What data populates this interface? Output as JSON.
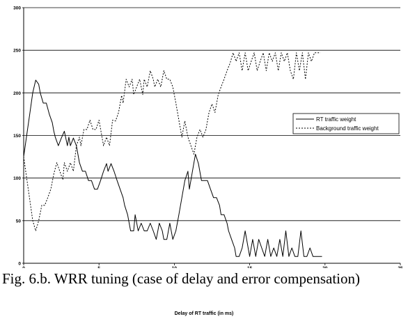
{
  "chart_data": {
    "type": "line",
    "title": "",
    "xlabel": "",
    "ylabel": "",
    "xlim": [
      0,
      25
    ],
    "ylim": [
      0,
      300
    ],
    "x_ticks": [
      "0",
      "5",
      "10",
      "15",
      "20",
      "25"
    ],
    "y_ticks": [
      "0",
      "50",
      "100",
      "150",
      "200",
      "250",
      "300"
    ],
    "grid": "horizontal",
    "legend_position": "right",
    "series": [
      {
        "name": "RT traffic weight",
        "style": "solid",
        "color": "#000000",
        "points": [
          [
            0,
            125
          ],
          [
            0.2,
            150
          ],
          [
            0.4,
            175
          ],
          [
            0.6,
            200
          ],
          [
            0.8,
            215
          ],
          [
            1.0,
            210
          ],
          [
            1.1,
            200
          ],
          [
            1.3,
            188
          ],
          [
            1.5,
            188
          ],
          [
            1.7,
            175
          ],
          [
            1.9,
            165
          ],
          [
            2.0,
            155
          ],
          [
            2.1,
            148
          ],
          [
            2.3,
            138
          ],
          [
            2.5,
            147
          ],
          [
            2.7,
            155
          ],
          [
            2.9,
            138
          ],
          [
            3.0,
            148
          ],
          [
            3.1,
            138
          ],
          [
            3.3,
            147
          ],
          [
            3.5,
            138
          ],
          [
            3.7,
            118
          ],
          [
            3.9,
            108
          ],
          [
            4.1,
            108
          ],
          [
            4.3,
            97
          ],
          [
            4.5,
            97
          ],
          [
            4.7,
            87
          ],
          [
            4.9,
            87
          ],
          [
            5.1,
            97
          ],
          [
            5.3,
            108
          ],
          [
            5.5,
            117
          ],
          [
            5.6,
            108
          ],
          [
            5.8,
            117
          ],
          [
            6.0,
            108
          ],
          [
            6.2,
            97
          ],
          [
            6.4,
            87
          ],
          [
            6.6,
            77
          ],
          [
            6.7,
            68
          ],
          [
            6.9,
            57
          ],
          [
            7.1,
            38
          ],
          [
            7.3,
            38
          ],
          [
            7.4,
            57
          ],
          [
            7.6,
            38
          ],
          [
            7.8,
            47
          ],
          [
            8.0,
            38
          ],
          [
            8.2,
            38
          ],
          [
            8.4,
            47
          ],
          [
            8.6,
            38
          ],
          [
            8.8,
            28
          ],
          [
            9.0,
            47
          ],
          [
            9.2,
            38
          ],
          [
            9.3,
            28
          ],
          [
            9.5,
            28
          ],
          [
            9.7,
            47
          ],
          [
            9.9,
            28
          ],
          [
            10.1,
            38
          ],
          [
            10.3,
            57
          ],
          [
            10.5,
            77
          ],
          [
            10.7,
            97
          ],
          [
            10.9,
            108
          ],
          [
            11.0,
            87
          ],
          [
            11.2,
            108
          ],
          [
            11.4,
            128
          ],
          [
            11.6,
            117
          ],
          [
            11.8,
            97
          ],
          [
            12.0,
            97
          ],
          [
            12.2,
            97
          ],
          [
            12.4,
            87
          ],
          [
            12.6,
            77
          ],
          [
            12.8,
            77
          ],
          [
            13.0,
            68
          ],
          [
            13.1,
            57
          ],
          [
            13.3,
            57
          ],
          [
            13.5,
            47
          ],
          [
            13.6,
            38
          ],
          [
            13.8,
            28
          ],
          [
            14.0,
            18
          ],
          [
            14.1,
            8
          ],
          [
            14.3,
            8
          ],
          [
            14.5,
            18
          ],
          [
            14.7,
            38
          ],
          [
            14.9,
            18
          ],
          [
            15.0,
            8
          ],
          [
            15.2,
            28
          ],
          [
            15.4,
            8
          ],
          [
            15.6,
            28
          ],
          [
            15.8,
            18
          ],
          [
            16.0,
            8
          ],
          [
            16.2,
            28
          ],
          [
            16.4,
            8
          ],
          [
            16.6,
            18
          ],
          [
            16.8,
            8
          ],
          [
            17.0,
            28
          ],
          [
            17.2,
            8
          ],
          [
            17.4,
            38
          ],
          [
            17.6,
            8
          ],
          [
            17.8,
            18
          ],
          [
            18.0,
            8
          ],
          [
            18.2,
            8
          ],
          [
            18.4,
            38
          ],
          [
            18.6,
            8
          ],
          [
            18.8,
            8
          ],
          [
            19.0,
            18
          ],
          [
            19.2,
            8
          ],
          [
            19.4,
            8
          ],
          [
            19.6,
            8
          ],
          [
            19.8,
            8
          ]
        ]
      },
      {
        "name": "Background traffic weight",
        "style": "dashed",
        "color": "#000000",
        "points": [
          [
            0,
            125
          ],
          [
            0.2,
            100
          ],
          [
            0.4,
            75
          ],
          [
            0.6,
            50
          ],
          [
            0.8,
            38
          ],
          [
            1.0,
            50
          ],
          [
            1.2,
            68
          ],
          [
            1.4,
            68
          ],
          [
            1.6,
            77
          ],
          [
            1.8,
            87
          ],
          [
            2.0,
            105
          ],
          [
            2.2,
            118
          ],
          [
            2.4,
            108
          ],
          [
            2.6,
            98
          ],
          [
            2.7,
            118
          ],
          [
            2.9,
            108
          ],
          [
            3.1,
            118
          ],
          [
            3.3,
            108
          ],
          [
            3.5,
            138
          ],
          [
            3.7,
            148
          ],
          [
            3.8,
            138
          ],
          [
            4.0,
            157
          ],
          [
            4.2,
            157
          ],
          [
            4.4,
            168
          ],
          [
            4.6,
            157
          ],
          [
            4.8,
            157
          ],
          [
            5.0,
            168
          ],
          [
            5.2,
            148
          ],
          [
            5.3,
            138
          ],
          [
            5.5,
            148
          ],
          [
            5.7,
            138
          ],
          [
            5.9,
            168
          ],
          [
            6.1,
            167
          ],
          [
            6.3,
            177
          ],
          [
            6.5,
            197
          ],
          [
            6.6,
            188
          ],
          [
            6.8,
            216
          ],
          [
            7.0,
            207
          ],
          [
            7.2,
            216
          ],
          [
            7.3,
            198
          ],
          [
            7.5,
            207
          ],
          [
            7.7,
            216
          ],
          [
            7.9,
            198
          ],
          [
            8.0,
            216
          ],
          [
            8.2,
            207
          ],
          [
            8.4,
            226
          ],
          [
            8.6,
            216
          ],
          [
            8.7,
            207
          ],
          [
            8.9,
            216
          ],
          [
            9.1,
            207
          ],
          [
            9.3,
            226
          ],
          [
            9.5,
            216
          ],
          [
            9.7,
            216
          ],
          [
            9.9,
            207
          ],
          [
            10.1,
            188
          ],
          [
            10.3,
            168
          ],
          [
            10.5,
            148
          ],
          [
            10.7,
            167
          ],
          [
            10.9,
            148
          ],
          [
            11.1,
            138
          ],
          [
            11.3,
            128
          ],
          [
            11.5,
            148
          ],
          [
            11.7,
            157
          ],
          [
            11.9,
            148
          ],
          [
            12.1,
            157
          ],
          [
            12.3,
            177
          ],
          [
            12.5,
            187
          ],
          [
            12.7,
            177
          ],
          [
            12.9,
            197
          ],
          [
            13.1,
            207
          ],
          [
            13.3,
            216
          ],
          [
            13.5,
            226
          ],
          [
            13.7,
            235
          ],
          [
            13.9,
            247
          ],
          [
            14.1,
            237
          ],
          [
            14.3,
            247
          ],
          [
            14.5,
            226
          ],
          [
            14.7,
            247
          ],
          [
            14.9,
            226
          ],
          [
            15.1,
            237
          ],
          [
            15.3,
            247
          ],
          [
            15.5,
            226
          ],
          [
            15.7,
            237
          ],
          [
            15.9,
            247
          ],
          [
            16.1,
            226
          ],
          [
            16.3,
            247
          ],
          [
            16.5,
            237
          ],
          [
            16.7,
            247
          ],
          [
            16.9,
            226
          ],
          [
            17.1,
            247
          ],
          [
            17.3,
            237
          ],
          [
            17.5,
            247
          ],
          [
            17.7,
            226
          ],
          [
            17.9,
            216
          ],
          [
            18.1,
            247
          ],
          [
            18.3,
            226
          ],
          [
            18.5,
            247
          ],
          [
            18.7,
            216
          ],
          [
            18.9,
            247
          ],
          [
            19.1,
            237
          ],
          [
            19.3,
            247
          ],
          [
            19.5,
            247
          ],
          [
            19.7,
            247
          ]
        ]
      }
    ]
  },
  "caption": "Fig. 6.b. WRR tuning (case of delay and error compensation)",
  "bottom_label": "Delay of RT traffic (in ms)"
}
